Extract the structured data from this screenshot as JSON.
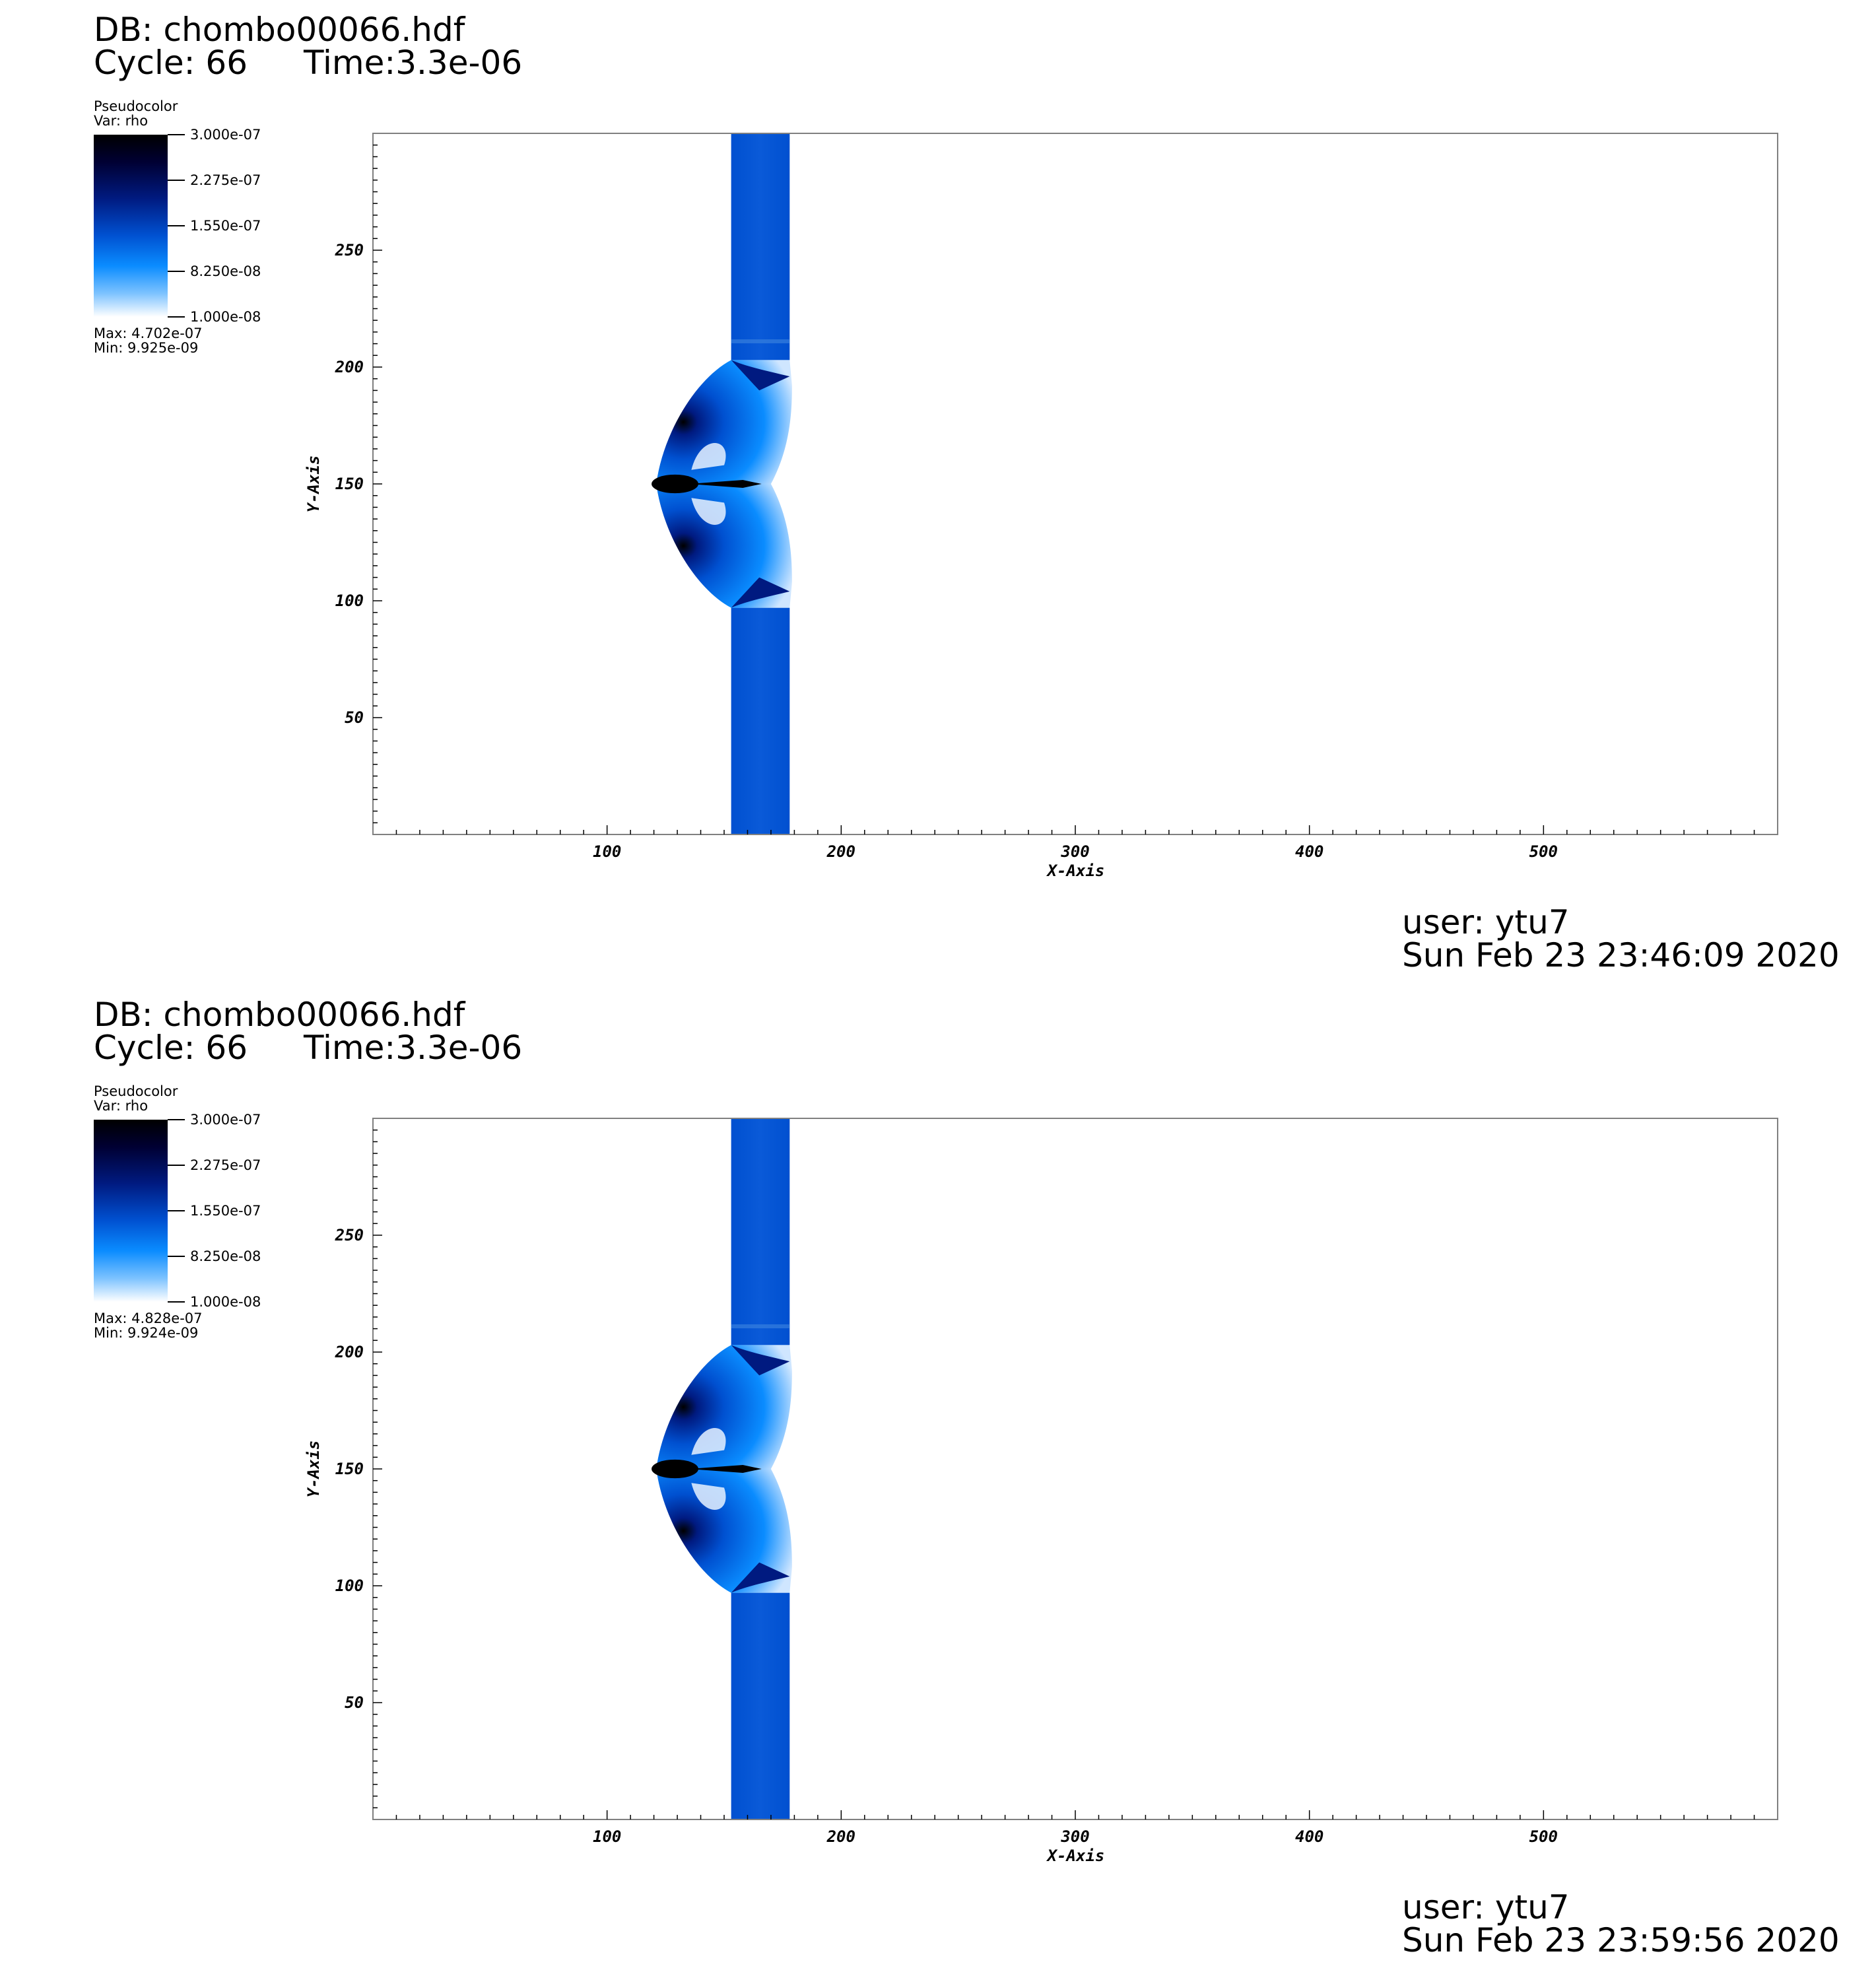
{
  "panels": [
    {
      "db_title": "DB: chombo00066.hdf",
      "cycle_label": "Cycle: 66",
      "time_label": "Time:3.3e-06",
      "legend": {
        "plot_type": "Pseudocolor",
        "var_label": "Var: rho",
        "ticks": [
          "3.000e-07",
          "2.275e-07",
          "1.550e-07",
          "8.250e-08",
          "1.000e-08"
        ],
        "max_label": "Max:  4.702e-07",
        "min_label": "Min:  9.925e-09"
      },
      "user_label": "user: ytu7",
      "date_label": "Sun Feb 23 23:46:09 2020"
    },
    {
      "db_title": "DB: chombo00066.hdf",
      "cycle_label": "Cycle: 66",
      "time_label": "Time:3.3e-06",
      "legend": {
        "plot_type": "Pseudocolor",
        "var_label": "Var: rho",
        "ticks": [
          "3.000e-07",
          "2.275e-07",
          "1.550e-07",
          "8.250e-08",
          "1.000e-08"
        ],
        "max_label": "Max:  4.828e-07",
        "min_label": "Min:  9.924e-09"
      },
      "user_label": "user: ytu7",
      "date_label": "Sun Feb 23 23:59:56 2020"
    }
  ],
  "chart_data": [
    {
      "type": "heatmap",
      "variable": "rho",
      "xlabel": "X-Axis",
      "ylabel": "Y-Axis",
      "xlim": [
        0,
        600
      ],
      "ylim": [
        0,
        300
      ],
      "xticks": [
        100,
        200,
        300,
        400,
        500
      ],
      "yticks": [
        50,
        100,
        150,
        200,
        250
      ],
      "color_range": [
        1e-08,
        3e-07
      ],
      "colormap": [
        "#ffffff",
        "#0a8cff",
        "#0050d0",
        "#001a80",
        "#000000"
      ],
      "features": {
        "column_x": [
          153,
          178
        ],
        "column_value": 1.3e-07,
        "bow_apex": [
          121,
          150
        ],
        "bow_y_range": [
          97,
          203
        ]
      }
    },
    {
      "type": "heatmap",
      "variable": "rho",
      "xlabel": "X-Axis",
      "ylabel": "Y-Axis",
      "xlim": [
        0,
        600
      ],
      "ylim": [
        0,
        300
      ],
      "xticks": [
        100,
        200,
        300,
        400,
        500
      ],
      "yticks": [
        50,
        100,
        150,
        200,
        250
      ],
      "color_range": [
        1e-08,
        3e-07
      ],
      "colormap": [
        "#ffffff",
        "#0a8cff",
        "#0050d0",
        "#001a80",
        "#000000"
      ],
      "features": {
        "column_x": [
          153,
          178
        ],
        "column_value": 1.3e-07,
        "bow_apex": [
          121,
          150
        ],
        "bow_y_range": [
          97,
          203
        ]
      }
    }
  ]
}
